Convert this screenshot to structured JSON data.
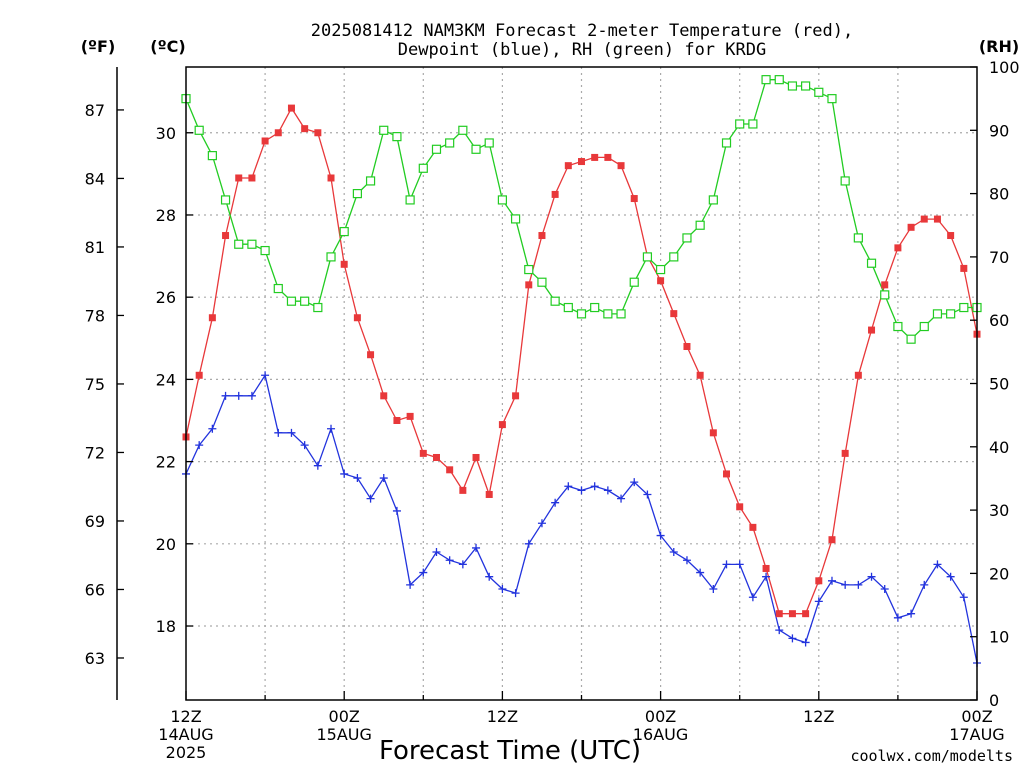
{
  "chart_data": {
    "type": "line",
    "title_line1": "2025081412 NAM3KM Forecast 2-meter Temperature (red),",
    "title_line2": "Dewpoint (blue), RH (green) for KRDG",
    "unit_f": "(ºF)",
    "unit_c": "(ºC)",
    "unit_rh": "(RH)",
    "xlabel": "Forecast Time (UTC)",
    "credit": "coolwx.com/modelts",
    "x_range_hours": [
      0,
      60
    ],
    "celsius_range": [
      16.2,
      31.6
    ],
    "fahrenheit_range": [
      61.16,
      88.88
    ],
    "rh_range": [
      0,
      100
    ],
    "grid": true,
    "colors": {
      "temperature": "#e8383a",
      "dewpoint": "#2233dd",
      "rh": "#22cc22",
      "credit": "#e02020",
      "grid": "#aaaaaa"
    },
    "x_ticks": [
      {
        "hour": 0,
        "label": "12Z",
        "date": "14AUG",
        "year": "2025"
      },
      {
        "hour": 12,
        "label": "00Z",
        "date": "15AUG",
        "year": ""
      },
      {
        "hour": 24,
        "label": "12Z",
        "date": "",
        "year": ""
      },
      {
        "hour": 36,
        "label": "00Z",
        "date": "16AUG",
        "year": ""
      },
      {
        "hour": 48,
        "label": "12Z",
        "date": "",
        "year": ""
      },
      {
        "hour": 60,
        "label": "00Z",
        "date": "17AUG",
        "year": ""
      }
    ],
    "celsius_ticks": [
      18,
      20,
      22,
      24,
      26,
      28,
      30
    ],
    "fahrenheit_ticks": [
      63,
      66,
      69,
      72,
      75,
      78,
      81,
      84,
      87
    ],
    "rh_ticks": [
      0,
      10,
      20,
      30,
      40,
      50,
      60,
      70,
      80,
      90,
      100
    ],
    "hours": [
      0,
      1,
      2,
      3,
      4,
      5,
      6,
      7,
      8,
      9,
      10,
      11,
      12,
      13,
      14,
      15,
      16,
      17,
      18,
      19,
      20,
      21,
      22,
      23,
      24,
      25,
      26,
      27,
      28,
      29,
      30,
      31,
      32,
      33,
      34,
      35,
      36,
      37,
      38,
      39,
      40,
      41,
      42,
      43,
      44,
      45,
      46,
      47,
      48,
      49,
      50,
      51,
      52,
      53,
      54,
      55,
      56,
      57,
      58,
      59,
      60
    ],
    "series": [
      {
        "key": "temperature",
        "unit": "C",
        "values": [
          22.6,
          24.1,
          25.5,
          27.5,
          28.9,
          28.9,
          29.8,
          30.0,
          30.6,
          30.1,
          30.0,
          28.9,
          26.8,
          25.5,
          24.6,
          23.6,
          23.0,
          23.1,
          22.2,
          22.1,
          21.8,
          21.3,
          22.1,
          21.2,
          22.9,
          23.6,
          26.3,
          27.5,
          28.5,
          29.2,
          29.3,
          29.4,
          29.4,
          29.2,
          28.4,
          27.0,
          26.4,
          25.6,
          24.8,
          24.1,
          22.7,
          21.7,
          20.9,
          20.4,
          19.4,
          18.3,
          18.3,
          18.3,
          19.1,
          20.1,
          22.2,
          24.1,
          25.2,
          26.3,
          27.2,
          27.7,
          27.9,
          27.9,
          27.5,
          26.7,
          25.1
        ]
      },
      {
        "key": "dewpoint",
        "unit": "C",
        "values": [
          21.7,
          22.4,
          22.8,
          23.6,
          23.6,
          23.6,
          24.1,
          22.7,
          22.7,
          22.4,
          21.9,
          22.8,
          21.7,
          21.6,
          21.1,
          21.6,
          20.8,
          19.0,
          19.3,
          19.8,
          19.6,
          19.5,
          19.9,
          19.2,
          18.9,
          18.8,
          20.0,
          20.5,
          21.0,
          21.4,
          21.3,
          21.4,
          21.3,
          21.1,
          21.5,
          21.2,
          20.2,
          19.8,
          19.6,
          19.3,
          18.9,
          19.5,
          19.5,
          18.7,
          19.2,
          17.9,
          17.7,
          17.6,
          18.6,
          19.1,
          19.0,
          19.0,
          19.2,
          18.9,
          18.2,
          18.3,
          19.0,
          19.5,
          19.2,
          18.7,
          17.1
        ]
      },
      {
        "key": "rh",
        "unit": "%",
        "values": [
          95,
          90,
          86,
          79,
          72,
          72,
          71,
          65,
          63,
          63,
          62,
          70,
          74,
          80,
          82,
          90,
          89,
          79,
          84,
          87,
          88,
          90,
          87,
          88,
          79,
          76,
          68,
          66,
          63,
          62,
          61,
          62,
          61,
          61,
          66,
          70,
          68,
          70,
          73,
          75,
          79,
          88,
          91,
          91,
          98,
          98,
          97,
          97,
          96,
          95,
          82,
          73,
          69,
          64,
          59,
          57,
          59,
          61,
          61,
          62,
          62
        ]
      }
    ]
  }
}
